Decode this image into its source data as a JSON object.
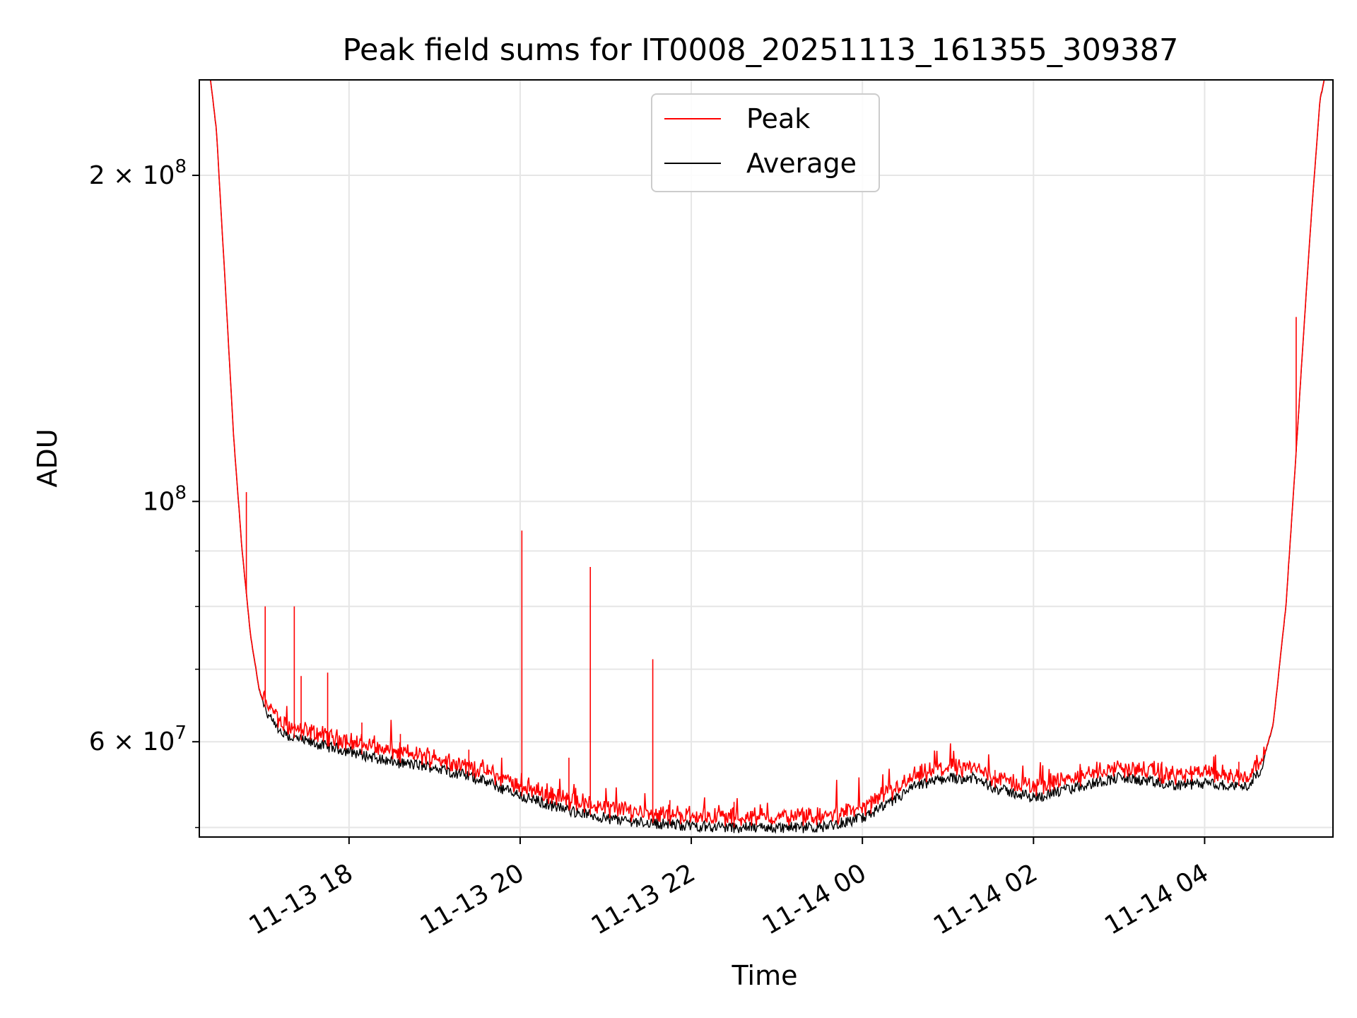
{
  "chart_data": {
    "type": "line",
    "title": "Peak field sums for IT0008_20251113_161355_309387",
    "xlabel": "Time",
    "ylabel": "ADU",
    "yscale": "log",
    "ylim": [
      49000000,
      245000000
    ],
    "xlim_hours": [
      16.25,
      29.5
    ],
    "grid": true,
    "legend_position": "top-center",
    "x_ticks": [
      {
        "hour": 18,
        "label": "11-13 18"
      },
      {
        "hour": 20,
        "label": "11-13 20"
      },
      {
        "hour": 22,
        "label": "11-13 22"
      },
      {
        "hour": 24,
        "label": "11-14 00"
      },
      {
        "hour": 26,
        "label": "11-14 02"
      },
      {
        "hour": 28,
        "label": "11-14 04"
      }
    ],
    "y_major_ticks": [
      {
        "value": 200000000,
        "label_base": "2 × 10",
        "label_exp": "8"
      },
      {
        "value": 100000000,
        "label_base": "10",
        "label_exp": "8"
      },
      {
        "value": 60000000,
        "label_base": "6 × 10",
        "label_exp": "7"
      }
    ],
    "y_minor_ticks": [
      50000000,
      70000000,
      80000000,
      90000000
    ],
    "baseline_points": [
      [
        16.38,
        245000000
      ],
      [
        16.45,
        220000000
      ],
      [
        16.55,
        160000000
      ],
      [
        16.65,
        115000000
      ],
      [
        16.75,
        90000000
      ],
      [
        16.85,
        75000000
      ],
      [
        16.95,
        67000000
      ],
      [
        17.05,
        63500000
      ],
      [
        17.2,
        61000000
      ],
      [
        17.5,
        60000000
      ],
      [
        18.0,
        58800000
      ],
      [
        18.5,
        57500000
      ],
      [
        19.0,
        56800000
      ],
      [
        19.5,
        55500000
      ],
      [
        20.0,
        53500000
      ],
      [
        20.5,
        52000000
      ],
      [
        21.0,
        51000000
      ],
      [
        21.5,
        50500000
      ],
      [
        22.0,
        50200000
      ],
      [
        22.5,
        50000000
      ],
      [
        23.0,
        50000000
      ],
      [
        23.5,
        50000000
      ],
      [
        24.0,
        51000000
      ],
      [
        24.3,
        52500000
      ],
      [
        24.6,
        54500000
      ],
      [
        25.0,
        55600000
      ],
      [
        25.3,
        55500000
      ],
      [
        25.6,
        54200000
      ],
      [
        26.0,
        53300000
      ],
      [
        26.4,
        54200000
      ],
      [
        26.8,
        55200000
      ],
      [
        27.0,
        55600000
      ],
      [
        27.3,
        55200000
      ],
      [
        27.6,
        54700000
      ],
      [
        28.0,
        54900000
      ],
      [
        28.35,
        54600000
      ],
      [
        28.5,
        54600000
      ],
      [
        28.65,
        56500000
      ],
      [
        28.8,
        62000000
      ],
      [
        28.95,
        80000000
      ],
      [
        29.05,
        105000000
      ],
      [
        29.15,
        140000000
      ],
      [
        29.25,
        185000000
      ],
      [
        29.35,
        235000000
      ],
      [
        29.4,
        245000000
      ]
    ],
    "peak_spikes": [
      {
        "hour": 16.8,
        "value": 102000000
      },
      {
        "hour": 17.02,
        "value": 80000000
      },
      {
        "hour": 17.36,
        "value": 80000000
      },
      {
        "hour": 17.44,
        "value": 69000000
      },
      {
        "hour": 17.75,
        "value": 69500000
      },
      {
        "hour": 18.15,
        "value": 62500000
      },
      {
        "hour": 18.6,
        "value": 61000000
      },
      {
        "hour": 19.4,
        "value": 59000000
      },
      {
        "hour": 20.02,
        "value": 94000000
      },
      {
        "hour": 20.57,
        "value": 58000000
      },
      {
        "hour": 20.82,
        "value": 87000000
      },
      {
        "hour": 21.55,
        "value": 71500000
      },
      {
        "hour": 21.75,
        "value": 53000000
      },
      {
        "hour": 22.5,
        "value": 52800000
      },
      {
        "hour": 24.1,
        "value": 53500000
      },
      {
        "hour": 25.55,
        "value": 56500000
      },
      {
        "hour": 26.55,
        "value": 56800000
      },
      {
        "hour": 27.5,
        "value": 57500000
      },
      {
        "hour": 28.4,
        "value": 57500000
      },
      {
        "hour": 29.07,
        "value": 148000000
      }
    ],
    "series": [
      {
        "name": "Peak",
        "color": "#ff0000"
      },
      {
        "name": "Average",
        "color": "#000000"
      }
    ]
  }
}
